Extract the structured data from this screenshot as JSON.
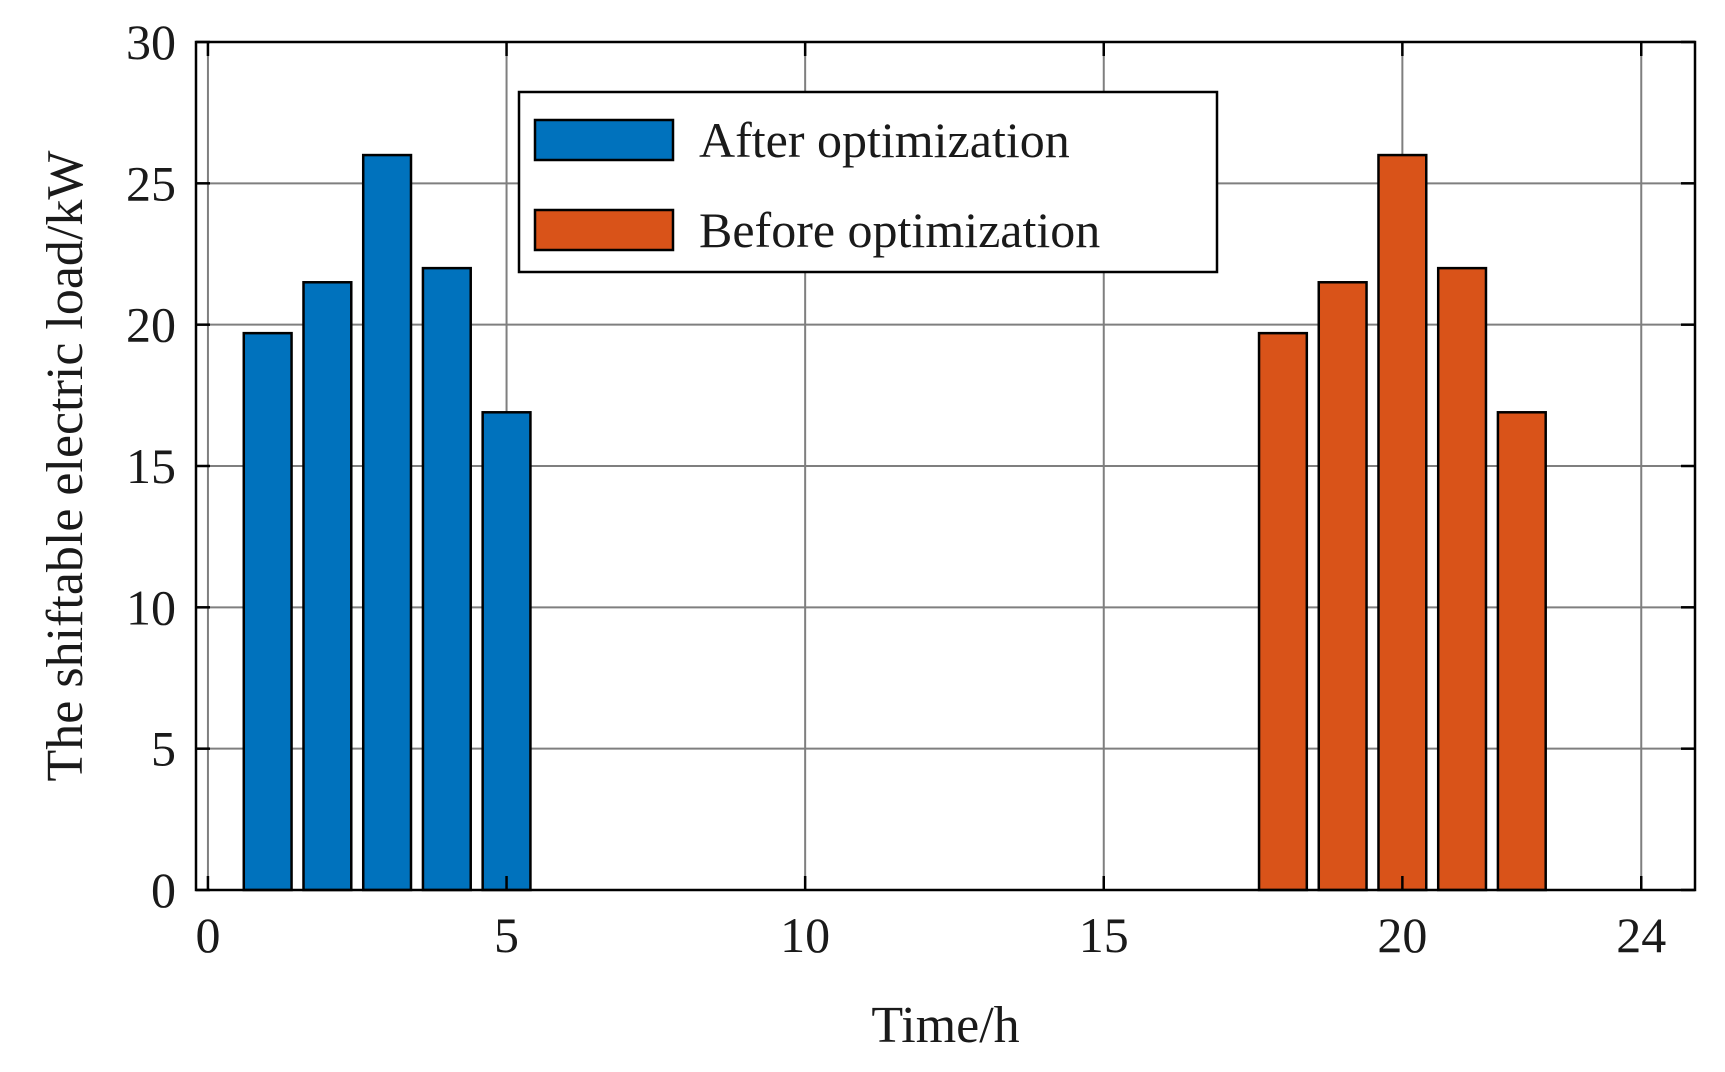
{
  "chart_data": {
    "type": "bar",
    "title": "",
    "xlabel": "Time/h",
    "ylabel": "The shiftable electric load/kW",
    "xlim": [
      0,
      24
    ],
    "ylim": [
      0,
      30
    ],
    "xticks": [
      0,
      5,
      10,
      15,
      20,
      24
    ],
    "yticks": [
      0,
      5,
      10,
      15,
      20,
      25,
      30
    ],
    "grid": true,
    "legend_position": "top-center",
    "bar_width": 0.8,
    "series": [
      {
        "name": "After optimization",
        "color": "#0072BD",
        "x": [
          1,
          2,
          3,
          4,
          5
        ],
        "values": [
          19.7,
          21.5,
          26.0,
          22.0,
          16.9
        ]
      },
      {
        "name": "Before optimization",
        "color": "#D95319",
        "x": [
          18,
          19,
          20,
          21,
          22
        ],
        "values": [
          19.7,
          21.5,
          26.0,
          22.0,
          16.9
        ]
      }
    ]
  }
}
